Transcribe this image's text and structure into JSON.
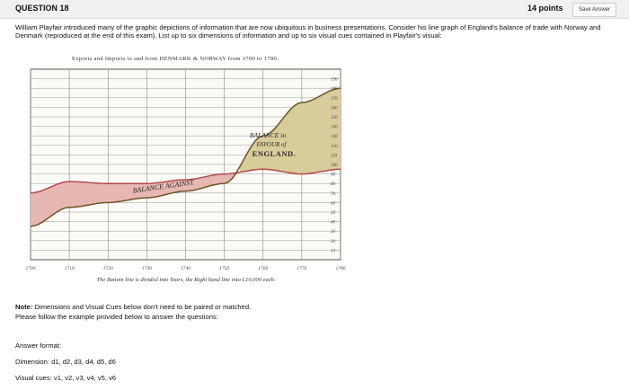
{
  "header": {
    "question": "QUESTION 18",
    "points": "14 points",
    "save_label": "Save Answer"
  },
  "question_text": "William Playfair introduced many of the graphic depictions of information that are now ubiquitous in business presentations. Consider his line graph of England's balance of trade with Norway and Denmark (reproduced at the end of this exam). List up to six dimensions of information and up to six visual cues contained in Playfair's visual:",
  "figure": {
    "title": "Exports and Imports to and from DENMARK & NORWAY from 1700 to 1780.",
    "label_favour": [
      "BALANCE in",
      "FAVOUR of",
      "ENGLAND."
    ],
    "label_against": "BALANCE AGAINST",
    "caption": "The Bottom line is divided into Years, the Right hand line into L10,000 each.",
    "x_ticks": [
      "1700",
      "1710",
      "1720",
      "1730",
      "1740",
      "1750",
      "1760",
      "1770",
      "1780"
    ],
    "y_ticks": [
      "190",
      "180",
      "170",
      "160",
      "150",
      "140",
      "130",
      "120",
      "110",
      "100",
      "90",
      "80",
      "70",
      "60",
      "50",
      "40",
      "30",
      "20",
      "10"
    ],
    "colors": {
      "favour_fill": "#d8cc9a",
      "against_fill": "#e7b7b2",
      "import_line": "#b34a4a",
      "export_line": "#6a5524"
    }
  },
  "chart_data": {
    "type": "area",
    "title": "Exports and Imports to and from DENMARK & NORWAY from 1700 to 1780.",
    "x": [
      1700,
      1710,
      1720,
      1730,
      1740,
      1750,
      1760,
      1770,
      1780
    ],
    "ylim": [
      0,
      200
    ],
    "series": [
      {
        "name": "Imports",
        "values": [
          70,
          82,
          80,
          80,
          84,
          90,
          95,
          90,
          95
        ]
      },
      {
        "name": "Exports",
        "values": [
          35,
          55,
          60,
          65,
          72,
          80,
          130,
          165,
          180
        ]
      }
    ],
    "annotations": [
      "BALANCE in FAVOUR of ENGLAND.",
      "BALANCE AGAINST"
    ]
  },
  "note": {
    "bold_label": "Note:",
    "text": "Dimensions and Visual Cues below don't need to be paired or matched.",
    "line2": "Please follow the example provided below to answer the questions:"
  },
  "answer_format": {
    "heading": "Answer format:",
    "dimension": "Dimension: d1, d2, d3, d4, d5, d6",
    "visual": "Visual cues: v1, v2, v3, v4, v5, v6"
  }
}
